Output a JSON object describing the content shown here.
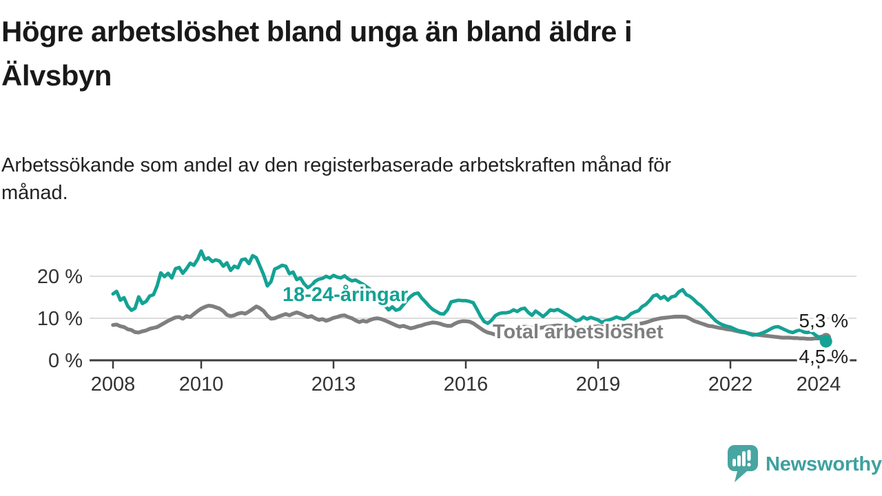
{
  "header": {
    "title": "Högre arbetslöshet bland unga än bland äldre i\nÄlvsbyn",
    "subtitle": "Arbetssökande som andel av den registerbaserade arbetskraften månad för\nmånad."
  },
  "chart_data": {
    "type": "line",
    "title": "Högre arbetslöshet bland unga än bland äldre i Älvsbyn",
    "subtitle": "Arbetssökande som andel av den registerbaserade arbetskraften månad för månad.",
    "xlabel": "",
    "ylabel": "",
    "unit": "%",
    "x_start_year": 2008,
    "x_step_months": 1,
    "x_end": "2024-03",
    "x_ticks": [
      2008,
      2010,
      2013,
      2016,
      2019,
      2022,
      2024
    ],
    "y_ticks": [
      0,
      10,
      20
    ],
    "y_tick_suffix": " %",
    "ylim": [
      0,
      28
    ],
    "grid": "horizontal",
    "legend": "inline-labels",
    "series": [
      {
        "key": "total",
        "name": "Total arbetslöshet",
        "color": "#7f7f7f",
        "end_label": "5,3 %",
        "end_value": 5.3,
        "values": [
          8.4,
          8.5,
          8.1,
          7.9,
          7.4,
          7.2,
          6.7,
          6.6,
          6.9,
          7.1,
          7.5,
          7.7,
          7.9,
          8.4,
          8.9,
          9.4,
          9.8,
          10.2,
          10.3,
          9.9,
          10.5,
          10.3,
          11.0,
          11.7,
          12.3,
          12.7,
          13.0,
          12.9,
          12.6,
          12.3,
          11.7,
          10.8,
          10.5,
          10.7,
          11.1,
          11.3,
          11.1,
          11.6,
          12.2,
          12.8,
          12.4,
          11.7,
          10.6,
          9.9,
          10.0,
          10.4,
          10.7,
          11.0,
          10.7,
          11.1,
          11.4,
          11.1,
          10.7,
          10.3,
          10.5,
          10.0,
          9.6,
          9.8,
          9.4,
          9.7,
          10.1,
          10.3,
          10.6,
          10.7,
          10.3,
          10.0,
          9.5,
          9.1,
          9.4,
          9.2,
          9.6,
          9.9,
          10.0,
          9.8,
          9.5,
          9.1,
          8.7,
          8.3,
          8.0,
          8.2,
          7.9,
          7.6,
          7.8,
          8.1,
          8.3,
          8.6,
          8.8,
          9.0,
          8.9,
          8.7,
          8.4,
          8.2,
          8.2,
          8.7,
          9.1,
          9.3,
          9.3,
          9.2,
          8.8,
          8.2,
          7.6,
          7.0,
          6.6,
          6.4,
          6.1,
          6.2,
          6.5,
          6.8,
          7.1,
          7.4,
          7.7,
          7.9,
          8.0,
          7.9,
          7.7,
          7.6,
          7.7,
          7.8,
          8.0,
          8.1,
          8.2,
          8.3,
          8.2,
          8.1,
          7.9,
          7.8,
          7.7,
          7.6,
          7.7,
          7.8,
          7.9,
          8.0,
          8.1,
          8.0,
          7.9,
          8.0,
          8.0,
          8.1,
          8.2,
          8.2,
          8.3,
          8.3,
          8.4,
          8.6,
          8.8,
          9.0,
          9.3,
          9.6,
          9.8,
          10.0,
          10.1,
          10.2,
          10.3,
          10.4,
          10.4,
          10.4,
          10.3,
          9.9,
          9.4,
          9.1,
          8.8,
          8.5,
          8.2,
          8.1,
          7.9,
          7.7,
          7.6,
          7.4,
          7.3,
          7.1,
          6.9,
          6.7,
          6.6,
          6.4,
          6.2,
          6.1,
          6.0,
          5.9,
          5.8,
          5.7,
          5.6,
          5.5,
          5.4,
          5.4,
          5.4,
          5.3,
          5.3,
          5.2,
          5.2,
          5.1,
          5.1,
          5.2,
          5.2,
          5.2,
          5.3
        ]
      },
      {
        "key": "youth",
        "name": "18-24-åringar",
        "color": "#14a294",
        "end_label": "4,5 %",
        "end_value": 4.5,
        "values": [
          15.8,
          16.4,
          14.3,
          14.9,
          12.9,
          11.9,
          12.4,
          15.1,
          13.5,
          14.0,
          15.3,
          15.6,
          17.7,
          20.8,
          19.9,
          20.7,
          19.6,
          21.8,
          22.1,
          20.7,
          21.8,
          23.1,
          22.6,
          24.0,
          26.0,
          24.0,
          24.4,
          23.5,
          23.9,
          23.6,
          22.4,
          23.2,
          21.4,
          22.4,
          22.0,
          23.9,
          24.1,
          23.0,
          24.9,
          24.4,
          22.4,
          20.3,
          17.7,
          18.7,
          21.7,
          22.1,
          22.6,
          22.4,
          20.6,
          21.0,
          19.2,
          19.6,
          18.2,
          17.3,
          17.8,
          18.8,
          19.3,
          19.5,
          20.0,
          19.6,
          20.2,
          19.8,
          19.6,
          20.1,
          19.4,
          18.9,
          19.1,
          18.6,
          18.1,
          17.5,
          16.9,
          16.0,
          15.2,
          14.2,
          13.0,
          12.0,
          12.7,
          11.9,
          12.2,
          13.2,
          14.3,
          15.2,
          15.8,
          16.0,
          14.8,
          13.9,
          12.9,
          12.1,
          11.6,
          11.1,
          11.0,
          12.0,
          13.9,
          14.1,
          14.3,
          14.2,
          14.2,
          14.0,
          13.7,
          12.2,
          10.5,
          9.2,
          8.8,
          9.5,
          10.6,
          11.1,
          11.3,
          11.3,
          11.5,
          12.0,
          11.6,
          12.2,
          12.4,
          11.4,
          10.7,
          11.7,
          11.1,
          10.4,
          11.1,
          12.0,
          11.8,
          12.1,
          11.6,
          11.1,
          10.6,
          10.0,
          9.4,
          9.6,
          10.3,
          9.8,
          10.2,
          9.9,
          9.6,
          9.0,
          9.4,
          9.6,
          9.9,
          10.3,
          10.0,
          9.8,
          10.3,
          11.1,
          11.5,
          11.8,
          12.8,
          13.3,
          14.2,
          15.3,
          15.6,
          14.7,
          15.2,
          14.3,
          15.1,
          15.3,
          16.3,
          16.8,
          15.6,
          15.2,
          14.5,
          13.6,
          13.0,
          12.1,
          11.2,
          10.3,
          9.4,
          8.8,
          8.4,
          8.1,
          7.9,
          7.5,
          7.1,
          6.9,
          6.7,
          6.3,
          6.0,
          6.1,
          6.3,
          6.6,
          7.0,
          7.5,
          7.9,
          8.0,
          7.6,
          7.2,
          6.8,
          6.6,
          7.0,
          7.2,
          6.7,
          6.6,
          6.8,
          6.1,
          5.5,
          5.7,
          4.5
        ]
      }
    ]
  },
  "footer": {
    "brand": "Newsworthy"
  },
  "colors": {
    "accent_teal": "#14a294",
    "series_gray": "#7f7f7f",
    "logo_teal": "#47a5a2",
    "logo_text_teal": "#3fa0a0",
    "grid": "#dcdcdc",
    "axis": "#3d3d3d",
    "text_dark": "#191919"
  }
}
